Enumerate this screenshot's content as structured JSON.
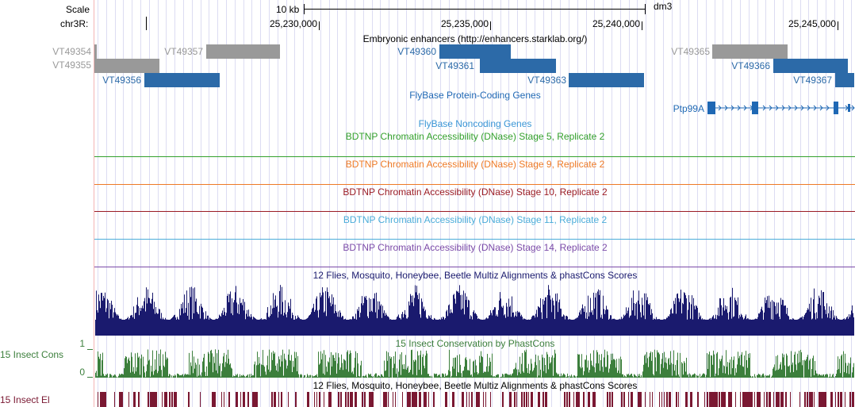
{
  "colors": {
    "grey_feature": "#999999",
    "enhancer_blue": "#2c6aa8",
    "flybase_blue": "#1f68b4",
    "noncoding_blue": "#3b96d6",
    "stage5": "#33a02c",
    "stage9": "#ee7a26",
    "stage10": "#9a1b24",
    "stage11": "#4bacd9",
    "stage14": "#7b4aa8",
    "multiz": "#1a1a6e",
    "cons": "#3c7f3c",
    "elements": "#7a1832"
  },
  "ruler": {
    "scale_label": "Scale",
    "scale_bar_label": "10 kb",
    "assembly": "dm3",
    "chrom_label": "chr3R:",
    "positions": [
      "25,230,000",
      "25,235,000",
      "25,240,000",
      "25,245,000"
    ]
  },
  "enhancers": {
    "title": "Embryonic enhancers (http://enhancers.starklab.org/)",
    "items": [
      {
        "name": "VT49354",
        "color": "grey"
      },
      {
        "name": "VT49357",
        "color": "grey"
      },
      {
        "name": "VT49355",
        "color": "grey"
      },
      {
        "name": "VT49356",
        "color": "blue"
      },
      {
        "name": "VT49360",
        "color": "blue"
      },
      {
        "name": "VT49361",
        "color": "blue"
      },
      {
        "name": "VT49363",
        "color": "blue"
      },
      {
        "name": "VT49365",
        "color": "grey"
      },
      {
        "name": "VT49366",
        "color": "blue"
      },
      {
        "name": "VT49367",
        "color": "blue"
      }
    ]
  },
  "protein_coding": {
    "title": "FlyBase Protein-Coding Genes",
    "gene": "Ptp99A"
  },
  "noncoding": {
    "title": "FlyBase Noncoding Genes"
  },
  "dnase": [
    {
      "title": "BDTNP Chromatin Accessibility (DNase) Stage 5, Replicate 2"
    },
    {
      "title": "BDTNP Chromatin Accessibility (DNase) Stage 9, Replicate 2"
    },
    {
      "title": "BDTNP Chromatin Accessibility (DNase) Stage 10, Replicate 2"
    },
    {
      "title": "BDTNP Chromatin Accessibility (DNase) Stage 11, Replicate 2"
    },
    {
      "title": "BDTNP Chromatin Accessibility (DNase) Stage 14, Replicate 2"
    }
  ],
  "multiz": {
    "title": "12 Flies, Mosquito, Honeybee, Beetle Multiz Alignments & phastCons Scores"
  },
  "conservation": {
    "title": "15 Insect Conservation by PhastCons",
    "side_label": "15 Insect Cons",
    "y_max": "1",
    "y_min": "0"
  },
  "elements": {
    "title": "12 Flies, Mosquito, Honeybee, Beetle Multiz Alignments & phastCons Scores",
    "side_label": "15 Insect El"
  }
}
